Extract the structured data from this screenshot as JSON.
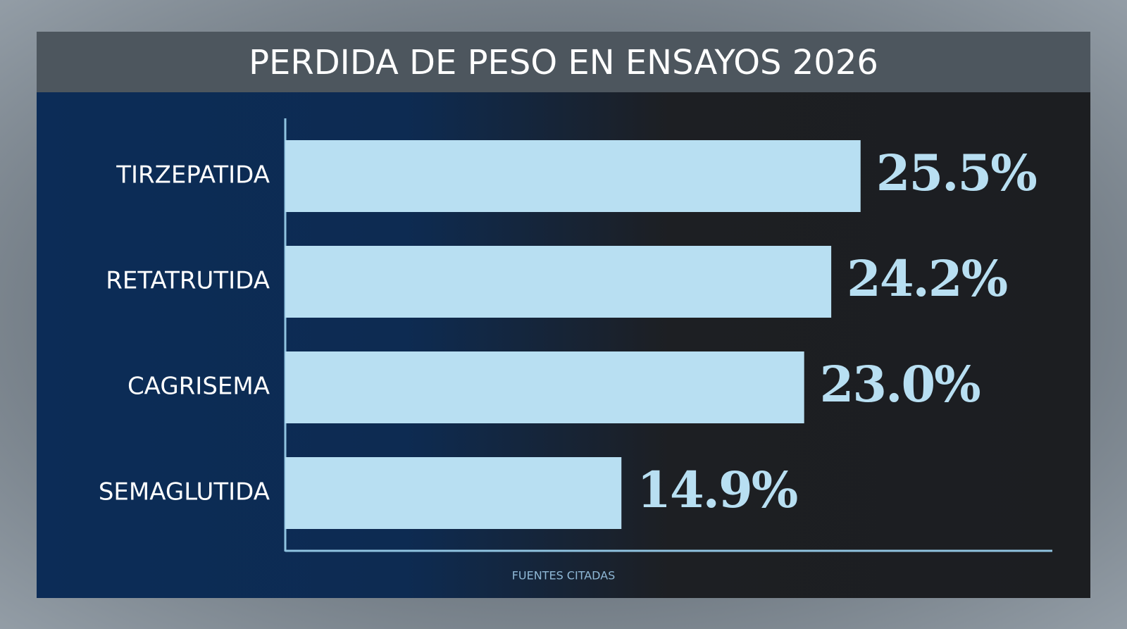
{
  "chart_data": {
    "type": "bar",
    "orientation": "horizontal",
    "title": "PERDIDA DE PESO EN ENSAYOS 2026",
    "categories": [
      "TIRZEPATIDA",
      "RETATRUTIDA",
      "CAGRISEMA",
      "SEMAGLUTIDA"
    ],
    "values": [
      25.5,
      24.2,
      23.0,
      14.9
    ],
    "value_labels": [
      "25.5%",
      "24.2%",
      "23.0%",
      "14.9%"
    ],
    "color": "#b8dff2",
    "xlim": [
      0,
      34
    ],
    "note": "FUENTES CITADAS"
  }
}
